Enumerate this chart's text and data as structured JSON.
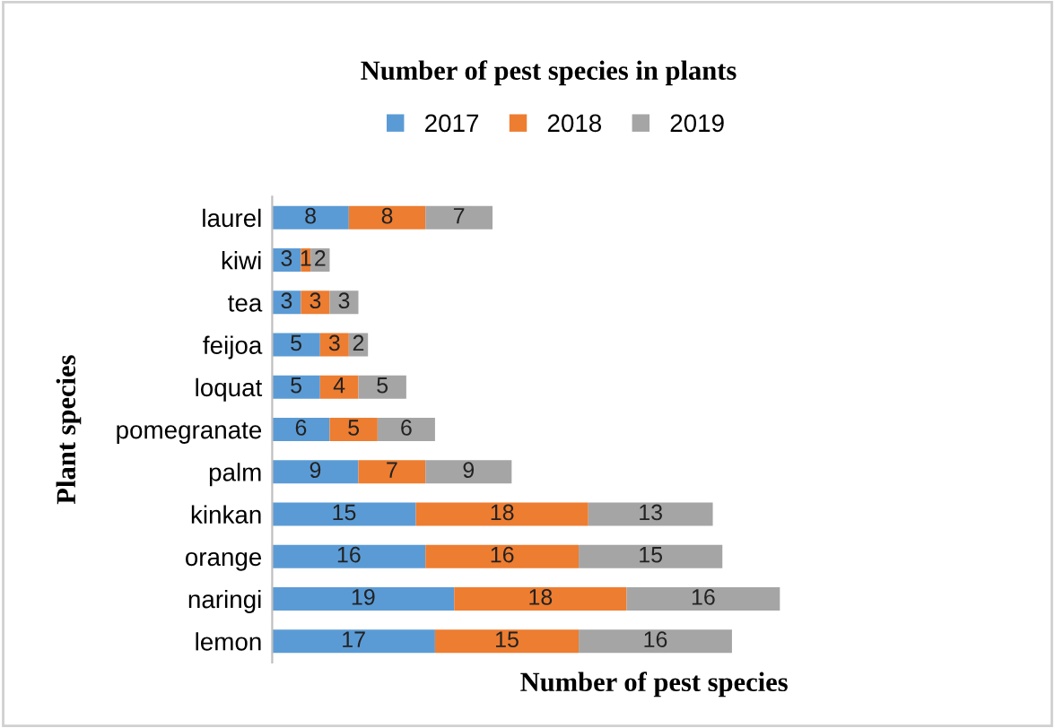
{
  "chart_data": {
    "type": "bar",
    "orientation": "horizontal",
    "stacked": true,
    "title": "Number of pest species in plants",
    "xlabel": "Number of pest species",
    "ylabel": "Plant species",
    "categories": [
      "laurel",
      "kiwi",
      "tea",
      "feijoa",
      "loquat",
      "pomegranate",
      "palm",
      "kinkan",
      "orange",
      "naringi",
      "lemon"
    ],
    "series": [
      {
        "name": "2017",
        "color": "#5b9bd5",
        "values": [
          8,
          3,
          3,
          5,
          5,
          6,
          9,
          15,
          16,
          19,
          17
        ]
      },
      {
        "name": "2018",
        "color": "#ed7d31",
        "values": [
          8,
          1,
          3,
          3,
          4,
          5,
          7,
          18,
          16,
          18,
          15
        ]
      },
      {
        "name": "2019",
        "color": "#a5a5a5",
        "values": [
          7,
          2,
          3,
          2,
          5,
          6,
          9,
          13,
          15,
          16,
          16
        ]
      }
    ],
    "data_labels": true,
    "legend": "top",
    "grid": false,
    "tick_labels": "y"
  }
}
